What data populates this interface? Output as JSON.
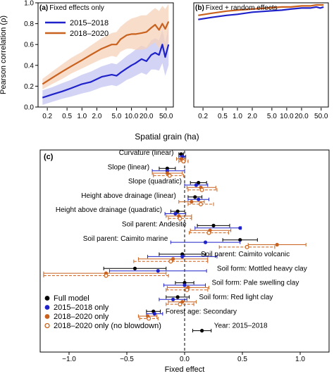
{
  "colors": {
    "blue": "#1f22c9",
    "orange": "#c8621e",
    "blue_band": "#c4c6f2",
    "orange_band": "#f5d2b9",
    "black": "#000000"
  },
  "chart_data": [
    {
      "panel": "(a)",
      "title": "Fixed effects only",
      "type": "line",
      "xlabel": "Spatial grain (ha)",
      "ylabel": "Pearson correlation (ρ)",
      "xscale": "log",
      "xlim": [
        0.13,
        70
      ],
      "ylim": [
        0,
        1.0
      ],
      "xticks": [
        "0.2",
        "0.5",
        "1.0",
        "2.0",
        "5.0",
        "10.0",
        "20.0",
        "50.0"
      ],
      "yticks": [
        "0.0",
        "0.2",
        "0.4",
        "0.6",
        "0.8",
        "1.0"
      ],
      "legend": "top-left",
      "grid": false,
      "series": [
        {
          "name": "2015–2018",
          "color": "blue",
          "x": [
            0.16,
            0.25,
            0.4,
            0.6,
            1.0,
            1.5,
            2.5,
            4,
            5,
            6,
            8,
            10,
            12,
            16,
            20,
            25,
            30,
            36,
            42,
            48,
            56
          ],
          "y": [
            0.09,
            0.12,
            0.15,
            0.18,
            0.22,
            0.24,
            0.29,
            0.31,
            0.3,
            0.33,
            0.37,
            0.4,
            0.42,
            0.46,
            0.44,
            0.5,
            0.52,
            0.5,
            0.6,
            0.48,
            0.6
          ],
          "lower": [
            0.02,
            0.05,
            0.08,
            0.1,
            0.13,
            0.15,
            0.19,
            0.21,
            0.2,
            0.22,
            0.26,
            0.28,
            0.3,
            0.33,
            0.31,
            0.36,
            0.36,
            0.35,
            0.42,
            0.3,
            0.4
          ],
          "upper": [
            0.16,
            0.19,
            0.23,
            0.26,
            0.31,
            0.34,
            0.39,
            0.42,
            0.41,
            0.44,
            0.49,
            0.52,
            0.55,
            0.59,
            0.57,
            0.64,
            0.66,
            0.64,
            0.74,
            0.62,
            0.76
          ]
        },
        {
          "name": "2018–2020",
          "color": "orange",
          "x": [
            0.16,
            0.25,
            0.4,
            0.6,
            1.0,
            1.5,
            2.5,
            4,
            5,
            6,
            8,
            10,
            12,
            16,
            20,
            25,
            30,
            36,
            42,
            48,
            56
          ],
          "y": [
            0.22,
            0.28,
            0.34,
            0.39,
            0.45,
            0.5,
            0.56,
            0.6,
            0.6,
            0.65,
            0.69,
            0.7,
            0.7,
            0.71,
            0.72,
            0.76,
            0.79,
            0.74,
            0.8,
            0.75,
            0.82
          ],
          "lower": [
            0.17,
            0.22,
            0.27,
            0.32,
            0.37,
            0.41,
            0.46,
            0.49,
            0.48,
            0.53,
            0.56,
            0.56,
            0.55,
            0.55,
            0.56,
            0.6,
            0.62,
            0.56,
            0.62,
            0.55,
            0.62
          ],
          "upper": [
            0.27,
            0.34,
            0.41,
            0.47,
            0.53,
            0.59,
            0.66,
            0.71,
            0.72,
            0.77,
            0.82,
            0.85,
            0.86,
            0.88,
            0.88,
            0.92,
            0.95,
            0.92,
            0.97,
            0.94,
            0.99
          ]
        }
      ]
    },
    {
      "panel": "(b)",
      "title": "Fixed + random effects",
      "type": "line",
      "xlabel": "Spatial grain (ha)",
      "xscale": "log",
      "xlim": [
        0.13,
        70
      ],
      "ylim": [
        0,
        1.0
      ],
      "xticks": [
        "0.2",
        "0.5",
        "1.0",
        "2.0",
        "5.0",
        "10.0",
        "20.0",
        "50.0"
      ],
      "grid": false,
      "series": [
        {
          "name": "2015–2018",
          "color": "blue",
          "x": [
            0.16,
            0.3,
            0.6,
            1.0,
            2,
            4,
            8,
            12,
            20,
            30,
            40,
            48,
            56
          ],
          "y": [
            0.84,
            0.86,
            0.88,
            0.89,
            0.91,
            0.92,
            0.93,
            0.94,
            0.95,
            0.95,
            0.96,
            0.95,
            0.96
          ]
        },
        {
          "name": "2018–2020",
          "color": "orange",
          "x": [
            0.16,
            0.3,
            0.6,
            1.0,
            2,
            4,
            8,
            12,
            20,
            30,
            40,
            48,
            56
          ],
          "y": [
            0.88,
            0.9,
            0.92,
            0.93,
            0.94,
            0.95,
            0.96,
            0.96,
            0.97,
            0.97,
            0.98,
            0.98,
            0.98
          ]
        }
      ]
    },
    {
      "panel": "(c)",
      "type": "scatter",
      "xlabel": "Fixed effect",
      "xlim": [
        -1.25,
        1.25
      ],
      "xticks": [
        "−1.0",
        "−0.5",
        "0.0",
        "0.5",
        "1.0"
      ],
      "xtick_values": [
        -1.0,
        -0.5,
        0.0,
        0.5,
        1.0
      ],
      "legend": "bottom-left",
      "legend_entries": [
        {
          "label": "Full model",
          "style": "black"
        },
        {
          "label": "2015–2018 only",
          "style": "blue"
        },
        {
          "label": "2018–2020 only",
          "style": "orange"
        },
        {
          "label": "2018–2020 only (no blowdown)",
          "style": "open"
        }
      ],
      "groups": [
        {
          "label": "Curvature (linear)",
          "label_side": "left",
          "points": [
            {
              "style": "black",
              "est": -0.03,
              "lo": -0.05,
              "hi": -0.01
            },
            {
              "style": "blue",
              "est": -0.02,
              "lo": -0.05,
              "hi": 0.01
            },
            {
              "style": "orange",
              "est": -0.03,
              "lo": -0.07,
              "hi": 0.01
            },
            {
              "style": "open",
              "est": -0.01,
              "lo": -0.05,
              "hi": 0.03
            }
          ]
        },
        {
          "label": "Slope (linear)",
          "label_side": "left",
          "points": [
            {
              "style": "black",
              "est": -0.15,
              "lo": -0.22,
              "hi": -0.08
            },
            {
              "style": "blue",
              "est": -0.15,
              "lo": -0.28,
              "hi": 0.0
            },
            {
              "style": "orange",
              "est": -0.15,
              "lo": -0.28,
              "hi": -0.02
            },
            {
              "style": "open",
              "est": -0.13,
              "lo": -0.27,
              "hi": -0.01
            }
          ]
        },
        {
          "label": "Slope (quadratic)",
          "label_side": "left",
          "points": [
            {
              "style": "black",
              "est": 0.12,
              "lo": 0.05,
              "hi": 0.19
            },
            {
              "style": "blue",
              "est": 0.1,
              "lo": 0.0,
              "hi": 0.2
            },
            {
              "style": "orange",
              "est": 0.14,
              "lo": 0.02,
              "hi": 0.27
            },
            {
              "style": "open",
              "est": 0.15,
              "lo": 0.03,
              "hi": 0.28
            }
          ]
        },
        {
          "label": "Height above drainage (linear)",
          "label_side": "left",
          "points": [
            {
              "style": "black",
              "est": 0.09,
              "lo": 0.03,
              "hi": 0.15
            },
            {
              "style": "blue",
              "est": 0.12,
              "lo": 0.03,
              "hi": 0.21
            },
            {
              "style": "orange",
              "est": 0.06,
              "lo": -0.05,
              "hi": 0.17
            },
            {
              "style": "open",
              "est": 0.14,
              "lo": 0.03,
              "hi": 0.25
            }
          ]
        },
        {
          "label": "Height above drainage (quadratic)",
          "label_side": "left",
          "points": [
            {
              "style": "black",
              "est": -0.06,
              "lo": -0.12,
              "hi": 0.0
            },
            {
              "style": "blue",
              "est": -0.08,
              "lo": -0.17,
              "hi": 0.01
            },
            {
              "style": "orange",
              "est": -0.05,
              "lo": -0.16,
              "hi": 0.06
            },
            {
              "style": "open",
              "est": -0.04,
              "lo": -0.14,
              "hi": 0.06
            }
          ]
        },
        {
          "label": "Soil parent: Andesite",
          "label_side": "left",
          "points": [
            {
              "style": "black",
              "est": 0.25,
              "lo": 0.11,
              "hi": 0.39
            },
            {
              "style": "blue",
              "est": 0.48,
              "lo": 0.09,
              "hi": 0.49
            },
            {
              "style": "orange",
              "est": 0.22,
              "lo": 0.05,
              "hi": 0.4
            },
            {
              "style": "open",
              "est": 0.21,
              "lo": 0.04,
              "hi": 0.38
            }
          ]
        },
        {
          "label": "Soil parent: Caimito marine",
          "label_side": "left",
          "points": [
            {
              "style": "black",
              "est": 0.48,
              "lo": 0.33,
              "hi": 0.63
            },
            {
              "style": "blue",
              "est": 0.18,
              "lo": -0.12,
              "hi": 0.48
            },
            {
              "style": "orange",
              "est": 0.8,
              "lo": 0.55,
              "hi": 1.05
            },
            {
              "style": "open",
              "est": 0.54,
              "lo": 0.3,
              "hi": 0.78
            }
          ]
        },
        {
          "label": "Soil parent: Caimito volcanic",
          "label_side": "right",
          "points": [
            {
              "style": "black",
              "est": -0.02,
              "lo": -0.22,
              "hi": 0.18
            },
            {
              "style": "blue",
              "est": -0.02,
              "lo": -0.32,
              "hi": 0.28
            },
            {
              "style": "orange",
              "est": -0.1,
              "lo": -0.4,
              "hi": 0.2
            },
            {
              "style": "open",
              "est": -0.12,
              "lo": -0.44,
              "hi": 0.2
            }
          ]
        },
        {
          "label": "Soil form: Mottled heavy clay",
          "label_side": "right",
          "points": [
            {
              "style": "black",
              "est": -0.43,
              "lo": -0.7,
              "hi": -0.16
            },
            {
              "style": "blue",
              "est": -0.23,
              "lo": -0.65,
              "hi": 0.19
            },
            {
              "style": "orange",
              "est": -0.68,
              "lo": -1.22,
              "hi": -0.16
            },
            {
              "style": "open",
              "est": -0.68,
              "lo": -1.22,
              "hi": -0.14
            }
          ]
        },
        {
          "label": "Soil form: Pale swelling clay",
          "label_side": "right",
          "points": [
            {
              "style": "black",
              "est": 0.0,
              "lo": -0.08,
              "hi": 0.08
            },
            {
              "style": "blue",
              "est": 0.0,
              "lo": -0.18,
              "hi": 0.18
            },
            {
              "style": "orange",
              "est": 0.03,
              "lo": -0.15,
              "hi": 0.21
            },
            {
              "style": "open",
              "est": 0.02,
              "lo": -0.16,
              "hi": 0.2
            }
          ]
        },
        {
          "label": "Soil form: Red light clay",
          "label_side": "right",
          "points": [
            {
              "style": "black",
              "est": -0.06,
              "lo": -0.16,
              "hi": 0.04
            },
            {
              "style": "blue",
              "est": -0.1,
              "lo": -0.22,
              "hi": 0.02
            },
            {
              "style": "orange",
              "est": -0.02,
              "lo": -0.14,
              "hi": 0.1
            },
            {
              "style": "open",
              "est": -0.04,
              "lo": -0.16,
              "hi": 0.08
            }
          ]
        },
        {
          "label": "Forest age: Secondary",
          "label_side": "right",
          "points": [
            {
              "style": "black",
              "est": -0.27,
              "lo": -0.33,
              "hi": -0.21
            },
            {
              "style": "blue",
              "est": -0.26,
              "lo": -0.33,
              "hi": -0.19
            },
            {
              "style": "orange",
              "est": -0.32,
              "lo": -0.4,
              "hi": -0.24
            },
            {
              "style": "open",
              "est": -0.31,
              "lo": -0.39,
              "hi": -0.23
            }
          ]
        },
        {
          "label": "Year: 2015–2018",
          "label_side": "right",
          "points": [
            {
              "style": "black",
              "est": 0.15,
              "lo": 0.07,
              "hi": 0.23
            }
          ]
        }
      ]
    }
  ]
}
